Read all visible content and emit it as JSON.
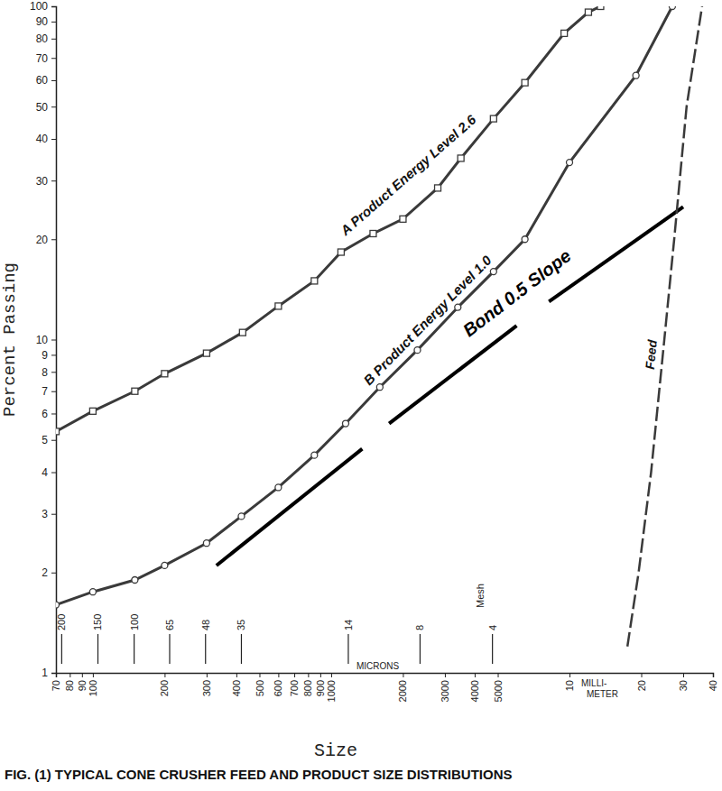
{
  "chart_data": {
    "type": "line",
    "title": "FIG. (1) TYPICAL CONE CRUSHER FEED AND PRODUCT SIZE DISTRIBUTIONS",
    "x_label": "Size",
    "y_label": "Percent Passing",
    "x_units": [
      "MICRONS",
      "MILLI-METER"
    ],
    "log": true,
    "grid": false,
    "xlim": [
      70,
      40000
    ],
    "ylim": [
      1,
      100
    ],
    "xticks": [
      70,
      80,
      90,
      100,
      200,
      300,
      400,
      500,
      600,
      700,
      800,
      900,
      1000,
      2000,
      3000,
      4000,
      5000,
      {
        "value": 10000,
        "label": "10"
      },
      {
        "value": 20000,
        "label": "20"
      },
      {
        "value": 30000,
        "label": "30"
      },
      {
        "value": 40000,
        "label": "40"
      }
    ],
    "yticks": [
      1,
      2,
      3,
      4,
      5,
      6,
      7,
      8,
      9,
      10,
      20,
      30,
      40,
      50,
      60,
      70,
      80,
      90,
      100
    ],
    "mesh_ticks": {
      "label": "Mesh",
      "ticks": [
        {
          "value": 74,
          "label": "200"
        },
        {
          "value": 105,
          "label": "150"
        },
        {
          "value": 149,
          "label": "100"
        },
        {
          "value": 210,
          "label": "65"
        },
        {
          "value": 297,
          "label": "48"
        },
        {
          "value": 420,
          "label": "35"
        },
        {
          "value": 1180,
          "label": "14"
        },
        {
          "value": 2360,
          "label": "8"
        },
        {
          "value": 4750,
          "label": "4"
        }
      ]
    },
    "series": [
      {
        "name": "A Product Energy Level 2.6",
        "color": "#3a3a3a",
        "marker": "square",
        "line_style": "solid",
        "x": [
          70,
          100,
          150,
          200,
          300,
          425,
          600,
          850,
          1100,
          1500,
          2000,
          2800,
          3500,
          4800,
          6500,
          9500,
          12000,
          13500
        ],
        "values": [
          5.3,
          6.1,
          7.0,
          7.9,
          9.1,
          10.5,
          12.6,
          15,
          18.3,
          20.8,
          23,
          28.5,
          35,
          46,
          59,
          83,
          96,
          100
        ]
      },
      {
        "name": "B Product Energy Level 1.0",
        "color": "#3a3a3a",
        "marker": "circle",
        "line_style": "solid",
        "x": [
          70,
          100,
          150,
          200,
          300,
          420,
          600,
          850,
          1150,
          1600,
          2300,
          3400,
          4800,
          6500,
          10000,
          19000,
          27000
        ],
        "values": [
          1.6,
          1.75,
          1.9,
          2.1,
          2.45,
          2.95,
          3.6,
          4.5,
          5.6,
          7.2,
          9.3,
          12.5,
          16,
          20,
          34,
          62,
          100
        ]
      },
      {
        "name": "Feed",
        "color": "#3a3a3a",
        "marker": "none",
        "line_style": "dashed",
        "x": [
          17500,
          19500,
          22000,
          25000,
          27500,
          31000,
          36000
        ],
        "values": [
          1.2,
          2,
          4,
          10,
          20,
          50,
          100
        ]
      }
    ],
    "reference_lines": {
      "label": "Bond 0.5 Slope",
      "color": "#000000",
      "segments": [
        {
          "x": [
            330,
            1350
          ],
          "values": [
            2.1,
            4.7
          ]
        },
        {
          "x": [
            1750,
            6000
          ],
          "values": [
            5.6,
            11
          ]
        },
        {
          "x": [
            8200,
            30000
          ],
          "values": [
            13,
            25
          ]
        }
      ]
    }
  }
}
